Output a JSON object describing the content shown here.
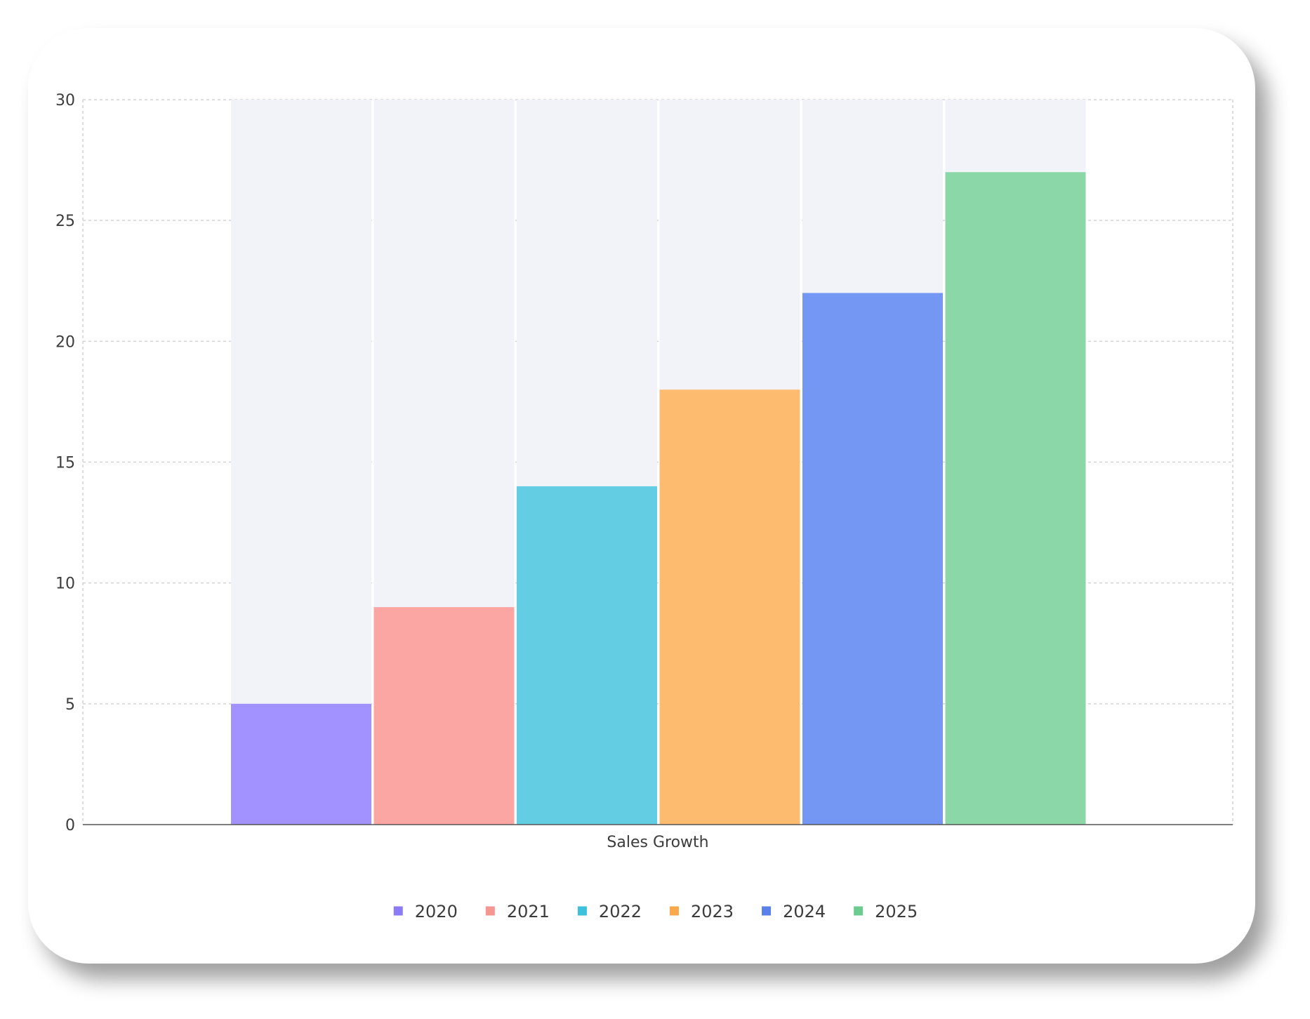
{
  "chart_data": {
    "type": "bar",
    "xlabel": "Sales Growth",
    "categories": [
      "Sales Growth"
    ],
    "ylim": [
      0,
      30
    ],
    "yticks": [
      0,
      5,
      10,
      15,
      20,
      25,
      30
    ],
    "grid": true,
    "legend_position": "bottom",
    "background_bar_color": "#f1f3f8",
    "series": [
      {
        "name": "2020",
        "value": 5,
        "color": "#a192ff",
        "legend_color": "#8b7cf6"
      },
      {
        "name": "2021",
        "value": 9,
        "color": "#fba6a3",
        "legend_color": "#f59693"
      },
      {
        "name": "2022",
        "value": 14,
        "color": "#63cde3",
        "legend_color": "#3ec2dc"
      },
      {
        "name": "2023",
        "value": 18,
        "color": "#fcbb6f",
        "legend_color": "#f9a84c"
      },
      {
        "name": "2024",
        "value": 22,
        "color": "#7397f2",
        "legend_color": "#5a80ea"
      },
      {
        "name": "2025",
        "value": 27,
        "color": "#8bd7a7",
        "legend_color": "#6ccb8f"
      }
    ]
  }
}
